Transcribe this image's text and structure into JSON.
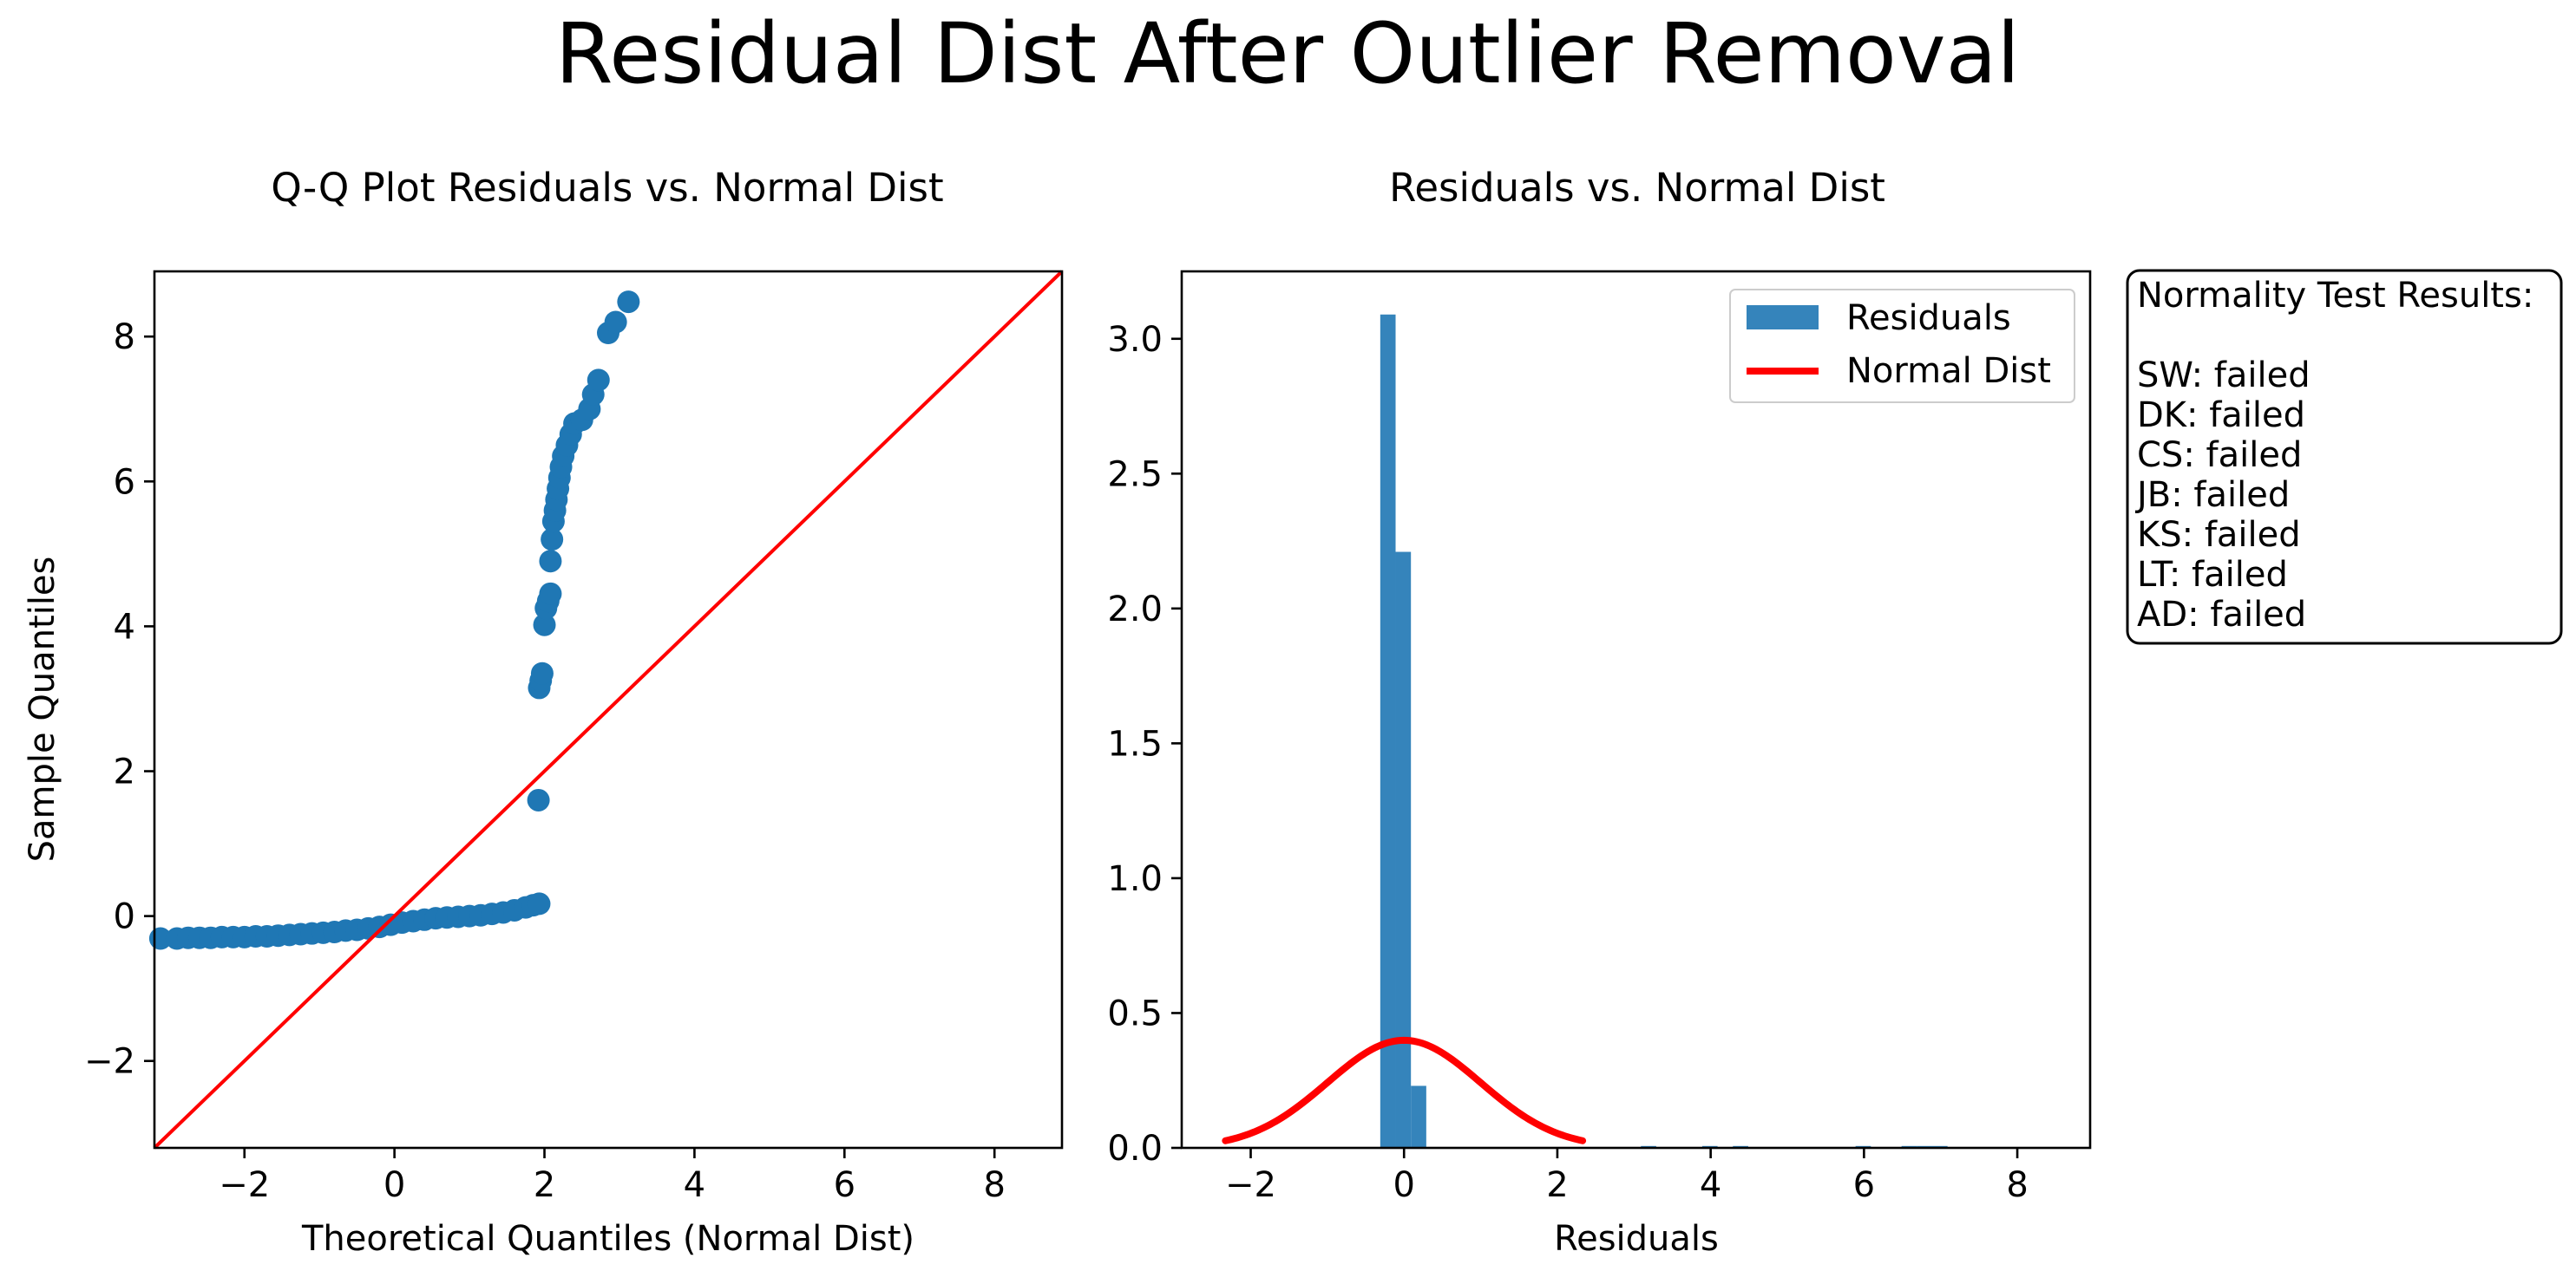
{
  "figure": {
    "suptitle": "Residual Dist After Outlier Removal"
  },
  "colors": {
    "points": "#1f77b4",
    "bars": "#1f77b4",
    "reference_line": "#ff0000",
    "normal_curve": "#ff0000",
    "axes": "#000000",
    "background": "#ffffff"
  },
  "chart_data": [
    {
      "type": "scatter",
      "title": "Q-Q Plot Residuals vs. Normal Dist",
      "xlabel": "Theoretical Quantiles (Normal Dist)",
      "ylabel": "Sample Quantiles",
      "xlim": [
        -3.2,
        8.9
      ],
      "ylim": [
        -3.2,
        8.9
      ],
      "xticks": [
        -2,
        0,
        2,
        4,
        6,
        8
      ],
      "yticks": [
        -2,
        0,
        2,
        4,
        6,
        8
      ],
      "xtick_labels": [
        "−2",
        "0",
        "2",
        "4",
        "6",
        "8"
      ],
      "ytick_labels": [
        "−2",
        "0",
        "2",
        "4",
        "6",
        "8"
      ],
      "grid": false,
      "reference_line": {
        "slope": 1,
        "intercept": 0,
        "color": "#ff0000"
      },
      "points": [
        [
          -3.12,
          -0.31
        ],
        [
          -2.9,
          -0.31
        ],
        [
          -2.75,
          -0.3
        ],
        [
          -2.6,
          -0.3
        ],
        [
          -2.45,
          -0.3
        ],
        [
          -2.3,
          -0.29
        ],
        [
          -2.15,
          -0.29
        ],
        [
          -2.0,
          -0.29
        ],
        [
          -1.85,
          -0.28
        ],
        [
          -1.7,
          -0.28
        ],
        [
          -1.55,
          -0.27
        ],
        [
          -1.4,
          -0.26
        ],
        [
          -1.25,
          -0.25
        ],
        [
          -1.1,
          -0.24
        ],
        [
          -0.95,
          -0.23
        ],
        [
          -0.8,
          -0.22
        ],
        [
          -0.65,
          -0.2
        ],
        [
          -0.5,
          -0.19
        ],
        [
          -0.35,
          -0.17
        ],
        [
          -0.2,
          -0.15
        ],
        [
          -0.05,
          -0.12
        ],
        [
          0.1,
          -0.09
        ],
        [
          0.25,
          -0.07
        ],
        [
          0.4,
          -0.05
        ],
        [
          0.55,
          -0.03
        ],
        [
          0.7,
          -0.02
        ],
        [
          0.85,
          -0.01
        ],
        [
          1.0,
          0.0
        ],
        [
          1.15,
          0.01
        ],
        [
          1.3,
          0.03
        ],
        [
          1.45,
          0.05
        ],
        [
          1.6,
          0.08
        ],
        [
          1.75,
          0.12
        ],
        [
          1.85,
          0.15
        ],
        [
          1.93,
          0.17
        ],
        [
          1.92,
          1.6
        ],
        [
          1.93,
          3.15
        ],
        [
          1.95,
          3.25
        ],
        [
          1.97,
          3.35
        ],
        [
          2.0,
          4.02
        ],
        [
          2.02,
          4.25
        ],
        [
          2.05,
          4.35
        ],
        [
          2.08,
          4.45
        ],
        [
          2.08,
          4.9
        ],
        [
          2.1,
          5.2
        ],
        [
          2.12,
          5.45
        ],
        [
          2.14,
          5.6
        ],
        [
          2.16,
          5.75
        ],
        [
          2.18,
          5.9
        ],
        [
          2.2,
          6.05
        ],
        [
          2.22,
          6.2
        ],
        [
          2.25,
          6.35
        ],
        [
          2.3,
          6.5
        ],
        [
          2.35,
          6.65
        ],
        [
          2.4,
          6.8
        ],
        [
          2.5,
          6.85
        ],
        [
          2.6,
          7.0
        ],
        [
          2.65,
          7.2
        ],
        [
          2.72,
          7.4
        ],
        [
          2.85,
          8.05
        ],
        [
          2.95,
          8.2
        ],
        [
          3.12,
          8.48
        ]
      ]
    },
    {
      "type": "bar",
      "title": "Residuals vs. Normal Dist",
      "xlabel": "Residuals",
      "ylabel": "",
      "xlim": [
        -2.9,
        8.95
      ],
      "ylim": [
        0,
        3.25
      ],
      "xticks": [
        -2,
        0,
        2,
        4,
        6,
        8
      ],
      "yticks": [
        0.0,
        0.5,
        1.0,
        1.5,
        2.0,
        2.5,
        3.0
      ],
      "xtick_labels": [
        "−2",
        "0",
        "2",
        "4",
        "6",
        "8"
      ],
      "ytick_labels": [
        "0.0",
        "0.5",
        "1.0",
        "1.5",
        "2.0",
        "2.5",
        "3.0"
      ],
      "grid": false,
      "legend_position": "top-right",
      "series": [
        {
          "name": "Residuals",
          "kind": "histogram",
          "bin_width": 0.2,
          "bins": [
            {
              "x0": -0.31,
              "height": 3.09
            },
            {
              "x0": -0.11,
              "height": 2.21
            },
            {
              "x0": 0.09,
              "height": 0.23
            },
            {
              "x0": 3.09,
              "height": 0.007
            },
            {
              "x0": 3.89,
              "height": 0.007
            },
            {
              "x0": 4.29,
              "height": 0.007
            },
            {
              "x0": 5.89,
              "height": 0.007
            },
            {
              "x0": 6.49,
              "height": 0.007
            },
            {
              "x0": 6.69,
              "height": 0.007
            },
            {
              "x0": 6.89,
              "height": 0.007
            }
          ]
        },
        {
          "name": "Normal Dist",
          "kind": "curve",
          "function": "standard_normal_pdf",
          "x_range": [
            -2.33,
            2.33
          ]
        }
      ]
    }
  ],
  "test_results": {
    "heading": "Normality Test Results:",
    "lines": [
      "SW: failed",
      "DK: failed",
      "CS: failed",
      "JB: failed",
      "KS: failed",
      "LT: failed",
      "AD: failed"
    ]
  }
}
